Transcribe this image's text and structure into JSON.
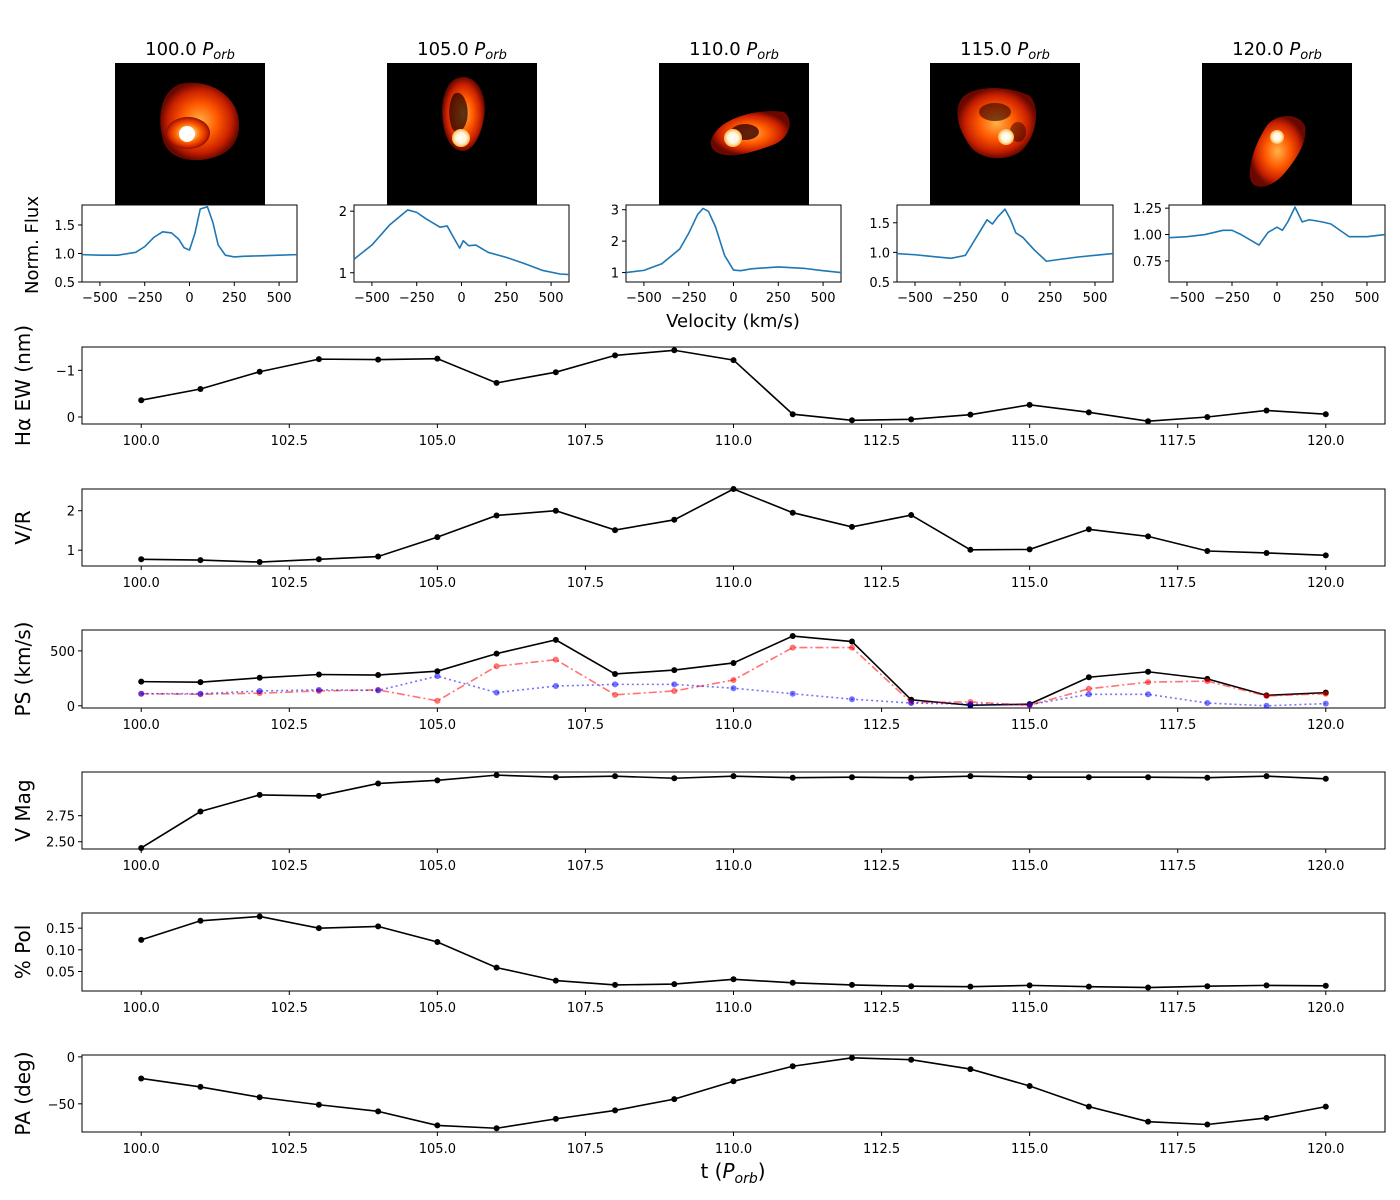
{
  "panel_titles": [
    {
      "main": "100.0",
      "p": "P",
      "sub": "orb"
    },
    {
      "main": "105.0",
      "p": "P",
      "sub": "orb"
    },
    {
      "main": "110.0",
      "p": "P",
      "sub": "orb"
    },
    {
      "main": "115.0",
      "p": "P",
      "sub": "orb"
    },
    {
      "main": "120.0",
      "p": "P",
      "sub": "orb"
    }
  ],
  "spectra_ylabel": "Norm. Flux",
  "spectra_xlabel": "Velocity (km/s)",
  "time_xlabel": {
    "main": "t (",
    "p": "P",
    "sub": "orb",
    "end": ")"
  },
  "colors": {
    "line": "#1f77b4",
    "black": "#000000",
    "red": "#ff0000",
    "blue": "#0000ff"
  },
  "chart_data": [
    {
      "type": "line",
      "id": "spec0",
      "xlabel": "Velocity (km/s)",
      "ylabel": "Norm. Flux",
      "xlim": [
        -600,
        600
      ],
      "ylim": [
        0.5,
        1.85
      ],
      "xticks": [
        -500,
        -250,
        0,
        250,
        500
      ],
      "xticklabels": [
        "−500",
        "−250",
        "0",
        "250",
        "500"
      ],
      "yticks": [
        0.5,
        1.0,
        1.5
      ],
      "yticklabels": [
        "0.5",
        "1.0",
        "1.5"
      ],
      "x": [
        -600,
        -500,
        -400,
        -300,
        -250,
        -200,
        -150,
        -100,
        -60,
        -30,
        0,
        30,
        60,
        100,
        130,
        160,
        200,
        250,
        300,
        400,
        500,
        600
      ],
      "y": [
        0.98,
        0.97,
        0.97,
        1.02,
        1.12,
        1.28,
        1.38,
        1.36,
        1.25,
        1.1,
        1.06,
        1.35,
        1.78,
        1.82,
        1.55,
        1.15,
        0.97,
        0.94,
        0.95,
        0.96,
        0.97,
        0.98
      ]
    },
    {
      "type": "line",
      "id": "spec1",
      "xlim": [
        -600,
        600
      ],
      "ylim": [
        0.85,
        2.1
      ],
      "xticks": [
        -500,
        -250,
        0,
        250,
        500
      ],
      "xticklabels": [
        "−500",
        "−250",
        "0",
        "250",
        "500"
      ],
      "yticks": [
        1,
        2
      ],
      "yticklabels": [
        "1",
        "2"
      ],
      "x": [
        -600,
        -500,
        -400,
        -300,
        -250,
        -200,
        -120,
        -80,
        -40,
        -10,
        10,
        40,
        80,
        150,
        250,
        350,
        450,
        550,
        600
      ],
      "y": [
        1.22,
        1.45,
        1.78,
        2.02,
        1.98,
        1.88,
        1.74,
        1.76,
        1.55,
        1.4,
        1.52,
        1.44,
        1.45,
        1.33,
        1.25,
        1.15,
        1.04,
        0.98,
        0.97
      ]
    },
    {
      "type": "line",
      "id": "spec2",
      "xlim": [
        -600,
        600
      ],
      "ylim": [
        0.7,
        3.15
      ],
      "xticks": [
        -500,
        -250,
        0,
        250,
        500
      ],
      "xticklabels": [
        "−500",
        "−250",
        "0",
        "250",
        "500"
      ],
      "yticks": [
        1,
        2,
        3
      ],
      "yticklabels": [
        "1",
        "2",
        "3"
      ],
      "x": [
        -600,
        -500,
        -400,
        -300,
        -250,
        -200,
        -170,
        -140,
        -100,
        -50,
        0,
        40,
        100,
        250,
        400,
        500,
        600
      ],
      "y": [
        1.0,
        1.07,
        1.28,
        1.75,
        2.25,
        2.85,
        3.04,
        2.95,
        2.45,
        1.55,
        1.08,
        1.06,
        1.12,
        1.18,
        1.13,
        1.06,
        1.0
      ]
    },
    {
      "type": "line",
      "id": "spec3",
      "xlim": [
        -600,
        600
      ],
      "ylim": [
        0.5,
        1.8
      ],
      "xticks": [
        -500,
        -250,
        0,
        250,
        500
      ],
      "xticklabels": [
        "−500",
        "−250",
        "0",
        "250",
        "500"
      ],
      "yticks": [
        0.5,
        1.0,
        1.5
      ],
      "yticklabels": [
        "0.5",
        "1.0",
        "1.5"
      ],
      "x": [
        -600,
        -500,
        -400,
        -300,
        -220,
        -180,
        -140,
        -100,
        -70,
        -40,
        0,
        30,
        60,
        100,
        160,
        230,
        300,
        400,
        500,
        600
      ],
      "y": [
        0.98,
        0.96,
        0.93,
        0.9,
        0.95,
        1.15,
        1.35,
        1.55,
        1.48,
        1.6,
        1.73,
        1.56,
        1.33,
        1.25,
        1.05,
        0.85,
        0.88,
        0.92,
        0.95,
        0.98
      ]
    },
    {
      "type": "line",
      "id": "spec4",
      "xlim": [
        -600,
        600
      ],
      "ylim": [
        0.55,
        1.28
      ],
      "xticks": [
        -500,
        -250,
        0,
        250,
        500
      ],
      "xticklabels": [
        "−500",
        "−250",
        "0",
        "250",
        "500"
      ],
      "yticks": [
        0.75,
        1.0,
        1.25
      ],
      "yticklabels": [
        "0.75",
        "1.00",
        "1.25"
      ],
      "x": [
        -600,
        -500,
        -400,
        -300,
        -250,
        -200,
        -100,
        -50,
        0,
        30,
        60,
        100,
        140,
        180,
        250,
        300,
        400,
        500,
        600
      ],
      "y": [
        0.97,
        0.98,
        1.0,
        1.04,
        1.04,
        1.0,
        0.9,
        1.02,
        1.07,
        1.04,
        1.12,
        1.26,
        1.12,
        1.14,
        1.12,
        1.1,
        0.98,
        0.98,
        1.0
      ]
    },
    {
      "type": "line",
      "id": "ew",
      "ylabel": "Hα EW (nm)",
      "xlim": [
        99.0,
        121.0
      ],
      "ylim": [
        0.15,
        -1.5
      ],
      "yinverted": true,
      "xticks": [
        100.0,
        102.5,
        105.0,
        107.5,
        110.0,
        112.5,
        115.0,
        117.5,
        120.0
      ],
      "xticklabels": [
        "100.0",
        "102.5",
        "105.0",
        "107.5",
        "110.0",
        "112.5",
        "115.0",
        "117.5",
        "120.0"
      ],
      "yticks": [
        -1,
        0
      ],
      "yticklabels": [
        "−1",
        "0"
      ],
      "x": [
        100,
        101,
        102,
        103,
        104,
        105,
        106,
        107,
        108,
        109,
        110,
        111,
        112,
        113,
        114,
        115,
        116,
        117,
        118,
        119,
        120
      ],
      "series": [
        {
          "values": [
            -0.36,
            -0.6,
            -0.97,
            -1.24,
            -1.23,
            -1.25,
            -0.73,
            -0.96,
            -1.32,
            -1.43,
            -1.22,
            -0.06,
            0.07,
            0.05,
            -0.05,
            -0.26,
            -0.1,
            0.09,
            0.0,
            -0.14,
            -0.06
          ],
          "style": "solid",
          "color": "#000000"
        }
      ]
    },
    {
      "type": "line",
      "id": "vr",
      "ylabel": "V/R",
      "xlim": [
        99.0,
        121.0
      ],
      "ylim": [
        0.6,
        2.55
      ],
      "xticks": [
        100.0,
        102.5,
        105.0,
        107.5,
        110.0,
        112.5,
        115.0,
        117.5,
        120.0
      ],
      "xticklabels": [
        "100.0",
        "102.5",
        "105.0",
        "107.5",
        "110.0",
        "112.5",
        "115.0",
        "117.5",
        "120.0"
      ],
      "yticks": [
        1,
        2
      ],
      "yticklabels": [
        "1",
        "2"
      ],
      "x": [
        100,
        101,
        102,
        103,
        104,
        105,
        106,
        107,
        108,
        109,
        110,
        111,
        112,
        113,
        114,
        115,
        116,
        117,
        118,
        119,
        120
      ],
      "series": [
        {
          "values": [
            0.77,
            0.75,
            0.7,
            0.77,
            0.84,
            1.33,
            1.88,
            2.0,
            1.51,
            1.77,
            2.55,
            1.95,
            1.59,
            1.89,
            1.01,
            1.02,
            1.53,
            1.35,
            0.98,
            0.93,
            0.87
          ],
          "style": "solid",
          "color": "#000000"
        }
      ]
    },
    {
      "type": "line",
      "id": "ps",
      "ylabel": "PS (km/s)",
      "xlim": [
        99.0,
        121.0
      ],
      "ylim": [
        -20,
        690
      ],
      "xticks": [
        100.0,
        102.5,
        105.0,
        107.5,
        110.0,
        112.5,
        115.0,
        117.5,
        120.0
      ],
      "xticklabels": [
        "100.0",
        "102.5",
        "105.0",
        "107.5",
        "110.0",
        "112.5",
        "115.0",
        "117.5",
        "120.0"
      ],
      "yticks": [
        0,
        500
      ],
      "yticklabels": [
        "0",
        "500"
      ],
      "x": [
        100,
        101,
        102,
        103,
        104,
        105,
        106,
        107,
        108,
        109,
        110,
        111,
        112,
        113,
        114,
        115,
        116,
        117,
        118,
        119,
        120
      ],
      "series": [
        {
          "values": [
            220,
            215,
            255,
            285,
            280,
            315,
            475,
            600,
            290,
            325,
            390,
            635,
            585,
            55,
            5,
            15,
            260,
            310,
            245,
            95,
            120
          ],
          "style": "solid",
          "color": "#000000"
        },
        {
          "values": [
            110,
            105,
            115,
            135,
            145,
            45,
            360,
            420,
            100,
            135,
            235,
            530,
            530,
            30,
            35,
            5,
            155,
            215,
            225,
            90,
            110
          ],
          "style": "dashdot",
          "color": "#ff0000"
        },
        {
          "values": [
            110,
            110,
            135,
            145,
            140,
            270,
            120,
            180,
            195,
            195,
            160,
            110,
            60,
            25,
            15,
            10,
            105,
            105,
            25,
            0,
            20
          ],
          "style": "dotted",
          "color": "#0000ff"
        }
      ]
    },
    {
      "type": "line",
      "id": "vmag",
      "ylabel": "V Mag",
      "xlim": [
        99.0,
        121.0
      ],
      "ylim": [
        2.43,
        3.17
      ],
      "yinverted": true,
      "xticks": [
        100.0,
        102.5,
        105.0,
        107.5,
        110.0,
        112.5,
        115.0,
        117.5,
        120.0
      ],
      "xticklabels": [
        "100.0",
        "102.5",
        "105.0",
        "107.5",
        "110.0",
        "112.5",
        "115.0",
        "117.5",
        "120.0"
      ],
      "yticks": [
        2.5,
        2.75
      ],
      "yticklabels": [
        "2.50",
        "2.75"
      ],
      "x": [
        100,
        101,
        102,
        103,
        104,
        105,
        106,
        107,
        108,
        109,
        110,
        111,
        112,
        113,
        114,
        115,
        116,
        117,
        118,
        119,
        120
      ],
      "series": [
        {
          "values": [
            2.44,
            2.79,
            2.95,
            2.94,
            3.06,
            3.09,
            3.14,
            3.12,
            3.13,
            3.11,
            3.13,
            3.115,
            3.12,
            3.115,
            3.13,
            3.12,
            3.12,
            3.12,
            3.115,
            3.13,
            3.105
          ],
          "style": "solid",
          "color": "#000000"
        }
      ]
    },
    {
      "type": "line",
      "id": "pol",
      "ylabel": "% Pol",
      "xlim": [
        99.0,
        121.0
      ],
      "ylim": [
        0.005,
        0.185
      ],
      "xticks": [
        100.0,
        102.5,
        105.0,
        107.5,
        110.0,
        112.5,
        115.0,
        117.5,
        120.0
      ],
      "xticklabels": [
        "100.0",
        "102.5",
        "105.0",
        "107.5",
        "110.0",
        "112.5",
        "115.0",
        "117.5",
        "120.0"
      ],
      "yticks": [
        0.05,
        0.1,
        0.15
      ],
      "yticklabels": [
        "0.05",
        "0.10",
        "0.15"
      ],
      "x": [
        100,
        101,
        102,
        103,
        104,
        105,
        106,
        107,
        108,
        109,
        110,
        111,
        112,
        113,
        114,
        115,
        116,
        117,
        118,
        119,
        120
      ],
      "series": [
        {
          "values": [
            0.123,
            0.167,
            0.177,
            0.15,
            0.154,
            0.118,
            0.059,
            0.029,
            0.019,
            0.021,
            0.032,
            0.024,
            0.019,
            0.016,
            0.015,
            0.018,
            0.015,
            0.013,
            0.016,
            0.018,
            0.017
          ],
          "style": "solid",
          "color": "#000000"
        }
      ]
    },
    {
      "type": "line",
      "id": "pa",
      "ylabel": "PA (deg)",
      "xlabel": "t (Porb)",
      "xlim": [
        99.0,
        121.0
      ],
      "ylim": [
        -80,
        2
      ],
      "xticks": [
        100.0,
        102.5,
        105.0,
        107.5,
        110.0,
        112.5,
        115.0,
        117.5,
        120.0
      ],
      "xticklabels": [
        "100.0",
        "102.5",
        "105.0",
        "107.5",
        "110.0",
        "112.5",
        "115.0",
        "117.5",
        "120.0"
      ],
      "yticks": [
        -50,
        0
      ],
      "yticklabels": [
        "−50",
        "0"
      ],
      "x": [
        100,
        101,
        102,
        103,
        104,
        105,
        106,
        107,
        108,
        109,
        110,
        111,
        112,
        113,
        114,
        115,
        116,
        117,
        118,
        119,
        120
      ],
      "series": [
        {
          "values": [
            -23,
            -32,
            -43,
            -51,
            -58,
            -73,
            -76,
            -66,
            -57,
            -45,
            -26,
            -10,
            -1,
            -3,
            -13,
            -31,
            -53,
            -69,
            -72,
            -65,
            -53
          ],
          "style": "solid",
          "color": "#000000"
        }
      ]
    }
  ]
}
